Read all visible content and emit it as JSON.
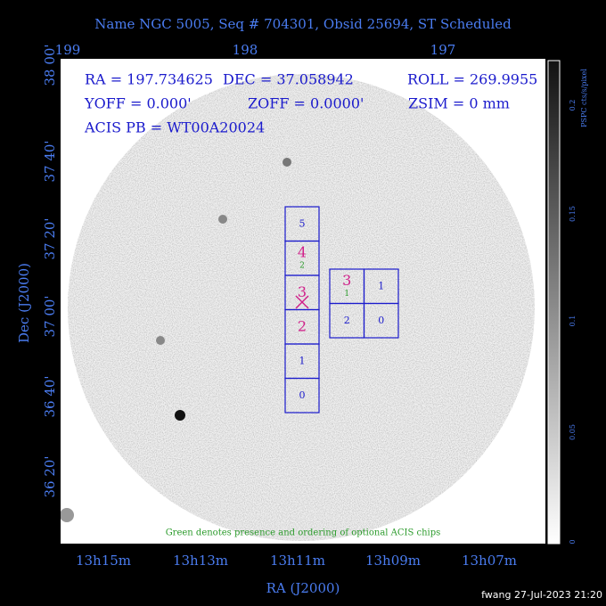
{
  "header": {
    "title": "Name NGC 5005, Seq # 704301, Obsid 25694, ST Scheduled"
  },
  "top_axis": {
    "labels": [
      "199",
      "198",
      "197"
    ]
  },
  "left_axis": {
    "title": "Dec (J2000)",
    "labels": [
      "38 00'",
      "37 40'",
      "37 20'",
      "37 00'",
      "36 40'",
      "36 20'"
    ]
  },
  "bottom_axis": {
    "title": "RA (J2000)",
    "labels": [
      "13h15m",
      "13h13m",
      "13h11m",
      "13h09m",
      "13h07m"
    ]
  },
  "colorbar": {
    "title": "PSPC cts/s/pixel",
    "labels": [
      "0.2",
      "0.15",
      "0.1",
      "0.05",
      "0"
    ]
  },
  "info": {
    "lines": [
      [
        "RA = 197.734625",
        "DEC = 37.058942",
        "ROLL = 269.9955"
      ],
      [
        "YOFF =   0.000'",
        "ZOFF =  0.0000'",
        "ZSIM = 0 mm"
      ],
      [
        "ACIS PB = WT00A20024"
      ]
    ]
  },
  "chips": {
    "column": [
      {
        "label": "5"
      },
      {
        "label": "4",
        "optional": "2"
      },
      {
        "label": "3"
      },
      {
        "label": "2"
      },
      {
        "label": "1"
      },
      {
        "label": "0"
      }
    ],
    "block": [
      {
        "label": "3",
        "optional": "1"
      },
      {
        "label": "1"
      },
      {
        "label": "2"
      },
      {
        "label": "0"
      }
    ]
  },
  "note": "Green denotes presence and ordering of optional ACIS chips",
  "footer": "fwang 27-Jul-2023 21:20"
}
